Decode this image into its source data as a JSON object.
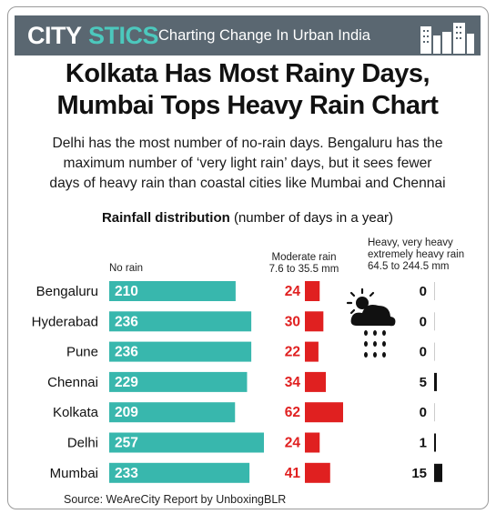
{
  "header": {
    "brand_part1": "CITY",
    "brand_part2": "STICS",
    "tagline": "Charting Change In Urban India"
  },
  "title_lines": [
    "Kolkata Has Most Rainy Days,",
    "Mumbai Tops Heavy Rain Chart"
  ],
  "subtitle_lines": [
    "Delhi has the most number of no-rain days. Bengaluru has the",
    "maximum number of ‘very light rain’ days, but it sees fewer",
    "days of heavy rain than coastal cities like Mumbai and Chennai"
  ],
  "source": "Source: WeAreCity Report by UnboxingBLR",
  "colors": {
    "banner": "#5a6771",
    "brand_accent": "#4cc8bd",
    "no_rain_bar": "#38b7ad",
    "moderate_bar": "#e02020",
    "heavy_bar": "#111111"
  },
  "icons": [
    "city-skyline-icon",
    "rain-cloud-sun-icon"
  ],
  "chart_data": {
    "type": "bar",
    "caption_bold": "Rainfall distribution",
    "caption_rest": "(number of days in a year)",
    "categories": [
      "Bengaluru",
      "Hyderabad",
      "Pune",
      "Chennai",
      "Kolkata",
      "Delhi",
      "Mumbai"
    ],
    "series": [
      {
        "name": "No rain",
        "label_lines": [
          "No rain"
        ],
        "values": [
          210,
          236,
          236,
          229,
          209,
          257,
          233
        ]
      },
      {
        "name": "Moderate rain",
        "label_lines": [
          "Moderate rain",
          "7.6 to 35.5 mm"
        ],
        "values": [
          24,
          30,
          22,
          34,
          62,
          24,
          41
        ]
      },
      {
        "name": "Heavy, very heavy extremely heavy rain",
        "label_lines": [
          "Heavy, very heavy",
          "extremely heavy rain",
          "64.5 to 244.5 mm"
        ],
        "values": [
          0,
          0,
          0,
          5,
          0,
          1,
          15
        ]
      }
    ],
    "grid": false,
    "legend": "column headers above each series"
  }
}
